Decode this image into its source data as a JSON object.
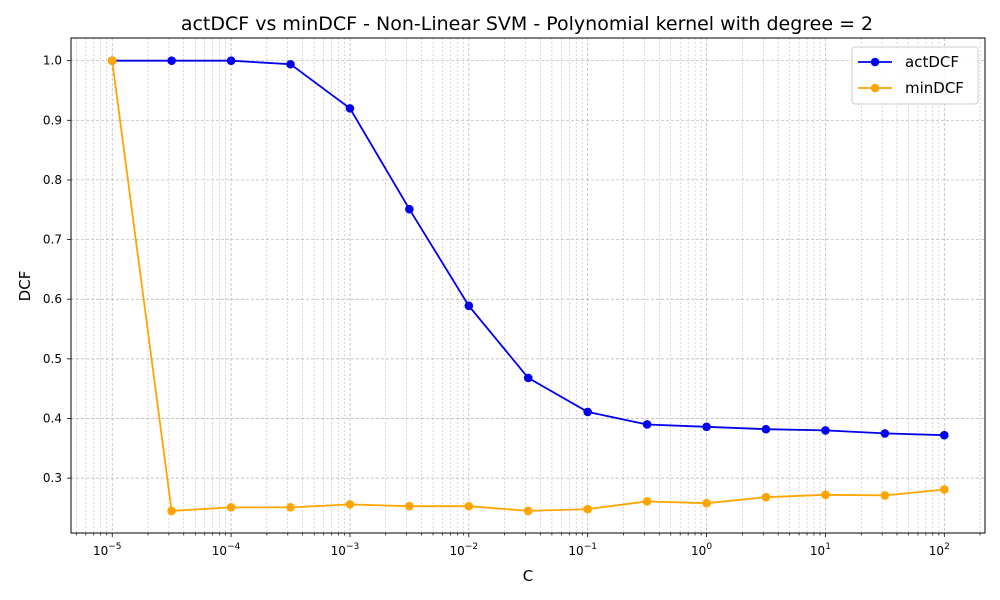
{
  "chart_data": {
    "type": "line",
    "title": "actDCF vs minDCF - Non-Linear SVM - Polynomial kernel with degree = 2",
    "xlabel": "C",
    "ylabel": "DCF",
    "xscale": "log",
    "xlim": [
      4.5e-06,
      220
    ],
    "ylim": [
      0.208,
      1.038
    ],
    "x": [
      1e-05,
      3.16e-05,
      0.0001,
      0.000316,
      0.001,
      0.00316,
      0.01,
      0.0316,
      0.1,
      0.316,
      1,
      3.16,
      10,
      31.6,
      100
    ],
    "x_tick_labels": [
      {
        "exp": -5,
        "label": "10",
        "sup": "−5"
      },
      {
        "exp": -4,
        "label": "10",
        "sup": "−4"
      },
      {
        "exp": -3,
        "label": "10",
        "sup": "−3"
      },
      {
        "exp": -2,
        "label": "10",
        "sup": "−2"
      },
      {
        "exp": -1,
        "label": "10",
        "sup": "−1"
      },
      {
        "exp": 0,
        "label": "10",
        "sup": "0"
      },
      {
        "exp": 1,
        "label": "10",
        "sup": "1"
      },
      {
        "exp": 2,
        "label": "10",
        "sup": "2"
      }
    ],
    "y_ticks": [
      0.3,
      0.4,
      0.5,
      0.6,
      0.7,
      0.8,
      0.9,
      1.0
    ],
    "y_tick_labels": [
      "0.3",
      "0.4",
      "0.5",
      "0.6",
      "0.7",
      "0.8",
      "0.9",
      "1.0"
    ],
    "grid": true,
    "legend_position": "top-right",
    "series": [
      {
        "name": "actDCF",
        "color": "#0000ee",
        "values": [
          1.0,
          1.0,
          1.0,
          0.994,
          0.92,
          0.751,
          0.589,
          0.468,
          0.411,
          0.39,
          0.386,
          0.382,
          0.38,
          0.375,
          0.372
        ]
      },
      {
        "name": "minDCF",
        "color": "#ffa500",
        "values": [
          1.0,
          0.245,
          0.251,
          0.251,
          0.256,
          0.253,
          0.253,
          0.245,
          0.248,
          0.261,
          0.258,
          0.268,
          0.272,
          0.271,
          0.281
        ]
      }
    ]
  }
}
